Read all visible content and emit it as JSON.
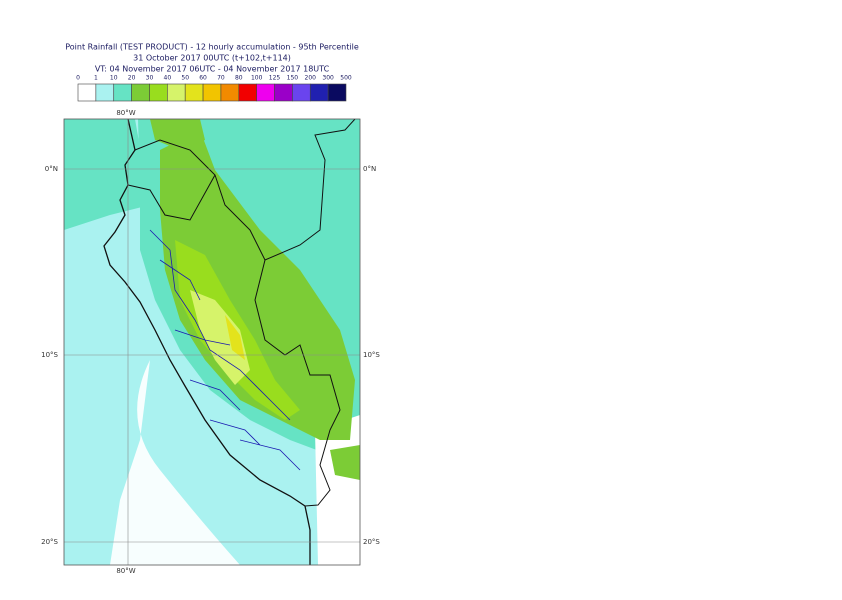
{
  "header": {
    "title": "Point Rainfall (TEST PRODUCT) - 12 hourly accumulation - 95th Percentile",
    "base": "31 October 2017 00UTC (t+102,t+114)",
    "valid": "VT: 04 November 2017 06UTC - 04 November 2017 18UTC"
  },
  "legend": {
    "labels": [
      "0",
      "1",
      "10",
      "20",
      "30",
      "40",
      "50",
      "60",
      "70",
      "80",
      "100",
      "125",
      "150",
      "200",
      "300",
      "500"
    ],
    "colors": [
      "#ffffff",
      "#aaf2f0",
      "#66e3c4",
      "#7ccc36",
      "#99dd1e",
      "#d6f36a",
      "#e3e31c",
      "#f2c400",
      "#f28a00",
      "#f20000",
      "#ee00ee",
      "#9a00c8",
      "#6a44ee",
      "#2020b0",
      "#0a0a60"
    ]
  },
  "map": {
    "lon_labels": [
      "80°W"
    ],
    "lat_labels": [
      "0°N",
      "10°S",
      "20°S"
    ]
  }
}
